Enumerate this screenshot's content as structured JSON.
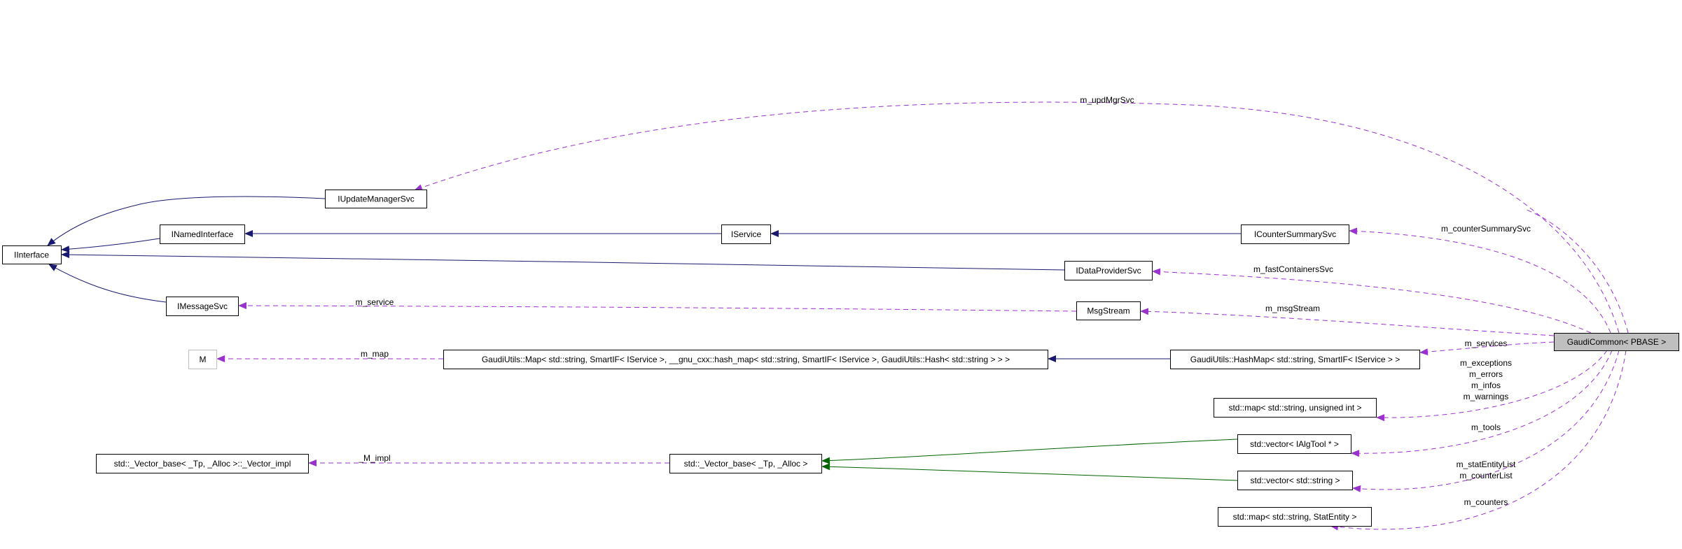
{
  "diagram": {
    "colors": {
      "inheritance_public": "#191970",
      "inheritance_template": "#006400",
      "usage": "#9a32cd",
      "focus_fill": "#bfbfbf"
    },
    "nodes": {
      "iinterface": "IInterface",
      "iupdatemanagersvc": "IUpdateManagerSvc",
      "inamedinterface": "INamedInterface",
      "imessagesvc": "IMessageSvc",
      "m": "M",
      "iservice": "IService",
      "icountersummarysvc": "ICounterSummarySvc",
      "idataprovidersvc": "IDataProviderSvc",
      "msgstream": "MsgStream",
      "gaudiutils_map": "GaudiUtils::Map< std::string, SmartIF< IService >, __gnu_cxx::hash_map< std::string, SmartIF< IService >, GaudiUtils::Hash< std::string > > >",
      "gaudiutils_hashmap": "GaudiUtils::HashMap< std::string, SmartIF< IService > >",
      "gaudicommon": "GaudiCommon< PBASE >",
      "map_unsigned": "std::map< std::string, unsigned int >",
      "vector_ialgtool": "std::vector< IAlgTool * >",
      "vector_string": "std::vector< std::string >",
      "map_statentity": "std::map< std::string, StatEntity >",
      "vector_base": "std::_Vector_base< _Tp, _Alloc >",
      "vector_impl": "std::_Vector_base< _Tp, _Alloc >::_Vector_impl"
    },
    "edge_labels": {
      "upd_mgr_svc": "m_updMgrSvc",
      "counter_summary_svc": "m_counterSummarySvc",
      "fast_containers_svc": "m_fastContainersSvc",
      "msg_stream": "m_msgStream",
      "service": "m_service",
      "services": "m_services",
      "map": "m_map",
      "counters_group": [
        "m_exceptions",
        "m_errors",
        "m_infos",
        "m_warnings"
      ],
      "tools": "m_tools",
      "list_group": [
        "m_statEntityList",
        "m_counterList"
      ],
      "counters": "m_counters",
      "m_impl": "_M_impl"
    }
  }
}
